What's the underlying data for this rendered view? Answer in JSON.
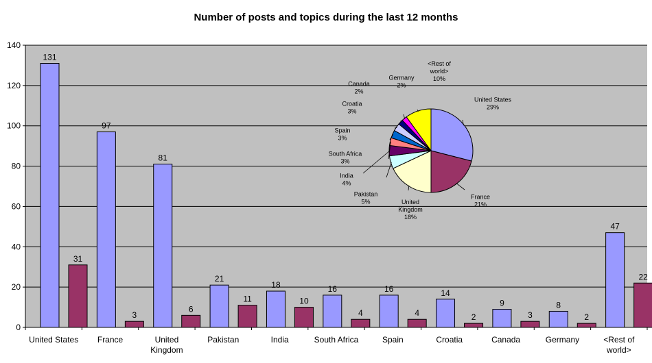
{
  "chart_data": [
    {
      "type": "bar",
      "title": "Number of posts and topics during the last 12 months",
      "categories": [
        "United States",
        "France",
        "United Kingdom",
        "Pakistan",
        "India",
        "South Africa",
        "Spain",
        "Croatia",
        "Canada",
        "Germany",
        "<Rest of world>"
      ],
      "category_lines": [
        [
          "United States"
        ],
        [
          "France"
        ],
        [
          "United",
          "Kingdom"
        ],
        [
          "Pakistan"
        ],
        [
          "India"
        ],
        [
          "South Africa"
        ],
        [
          "Spain"
        ],
        [
          "Croatia"
        ],
        [
          "Canada"
        ],
        [
          "Germany"
        ],
        [
          "<Rest of",
          "world>"
        ]
      ],
      "series": [
        {
          "values": [
            131,
            97,
            81,
            21,
            18,
            16,
            16,
            14,
            9,
            8,
            47
          ],
          "color": "#9999ff"
        },
        {
          "values": [
            31,
            3,
            6,
            11,
            10,
            4,
            4,
            2,
            3,
            2,
            22
          ],
          "color": "#993366"
        }
      ],
      "ylim": [
        0,
        140
      ],
      "yticks": [
        0,
        20,
        40,
        60,
        80,
        100,
        120,
        140
      ],
      "grid": true,
      "plot_background": "#c0c0c0"
    },
    {
      "type": "pie",
      "slices": [
        {
          "label": [
            "United States",
            "29%"
          ],
          "value": 29,
          "color": "#9999ff"
        },
        {
          "label": [
            "France",
            "21%"
          ],
          "value": 21,
          "color": "#993366"
        },
        {
          "label": [
            "United",
            "Kingdom",
            "18%"
          ],
          "value": 18,
          "color": "#ffffcc"
        },
        {
          "label": [
            "Pakistan",
            "5%"
          ],
          "value": 5,
          "color": "#ccffff"
        },
        {
          "label": [
            "India",
            "4%"
          ],
          "value": 4,
          "color": "#660066"
        },
        {
          "label": [
            "South Africa",
            "3%"
          ],
          "value": 3,
          "color": "#ff8080"
        },
        {
          "label": [
            "Spain",
            "3%"
          ],
          "value": 3,
          "color": "#0066cc"
        },
        {
          "label": [
            "Croatia",
            "3%"
          ],
          "value": 3,
          "color": "#ccccff"
        },
        {
          "label": [
            "Canada",
            "2%"
          ],
          "value": 2,
          "color": "#000080"
        },
        {
          "label": [
            "Germany",
            "2%"
          ],
          "value": 2,
          "color": "#ff00ff"
        },
        {
          "label": [
            "<Rest of",
            "world>",
            "10%"
          ],
          "value": 10,
          "color": "#ffff00"
        }
      ]
    }
  ]
}
